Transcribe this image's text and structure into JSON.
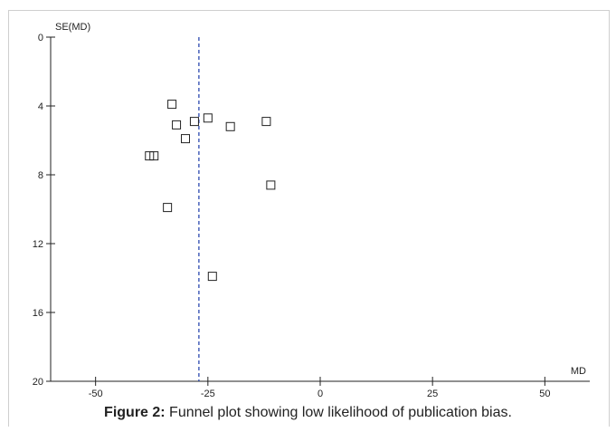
{
  "chart_data": {
    "type": "scatter",
    "title": "",
    "xlabel": "MD",
    "ylabel": "SE(MD)",
    "xlim": [
      -60,
      60
    ],
    "ylim": [
      0,
      20
    ],
    "y_reversed": true,
    "xticks": [
      -50,
      -25,
      0,
      25,
      50
    ],
    "yticks": [
      0,
      4,
      8,
      12,
      16,
      20
    ],
    "reference_line": {
      "x": -27,
      "style": "dashed",
      "color": "#1a3aa8"
    },
    "marker": "open-square",
    "points": [
      {
        "x": -33,
        "y": 3.9
      },
      {
        "x": -32,
        "y": 5.1
      },
      {
        "x": -28,
        "y": 4.9
      },
      {
        "x": -25,
        "y": 4.7
      },
      {
        "x": -30,
        "y": 5.9
      },
      {
        "x": -20,
        "y": 5.2
      },
      {
        "x": -12,
        "y": 4.9
      },
      {
        "x": -38,
        "y": 6.9
      },
      {
        "x": -37,
        "y": 6.9
      },
      {
        "x": -11,
        "y": 8.6
      },
      {
        "x": -34,
        "y": 9.9
      },
      {
        "x": -24,
        "y": 13.9
      }
    ]
  },
  "caption": {
    "label": "Figure 2:",
    "text": " Funnel plot showing low likelihood of publication bias."
  }
}
